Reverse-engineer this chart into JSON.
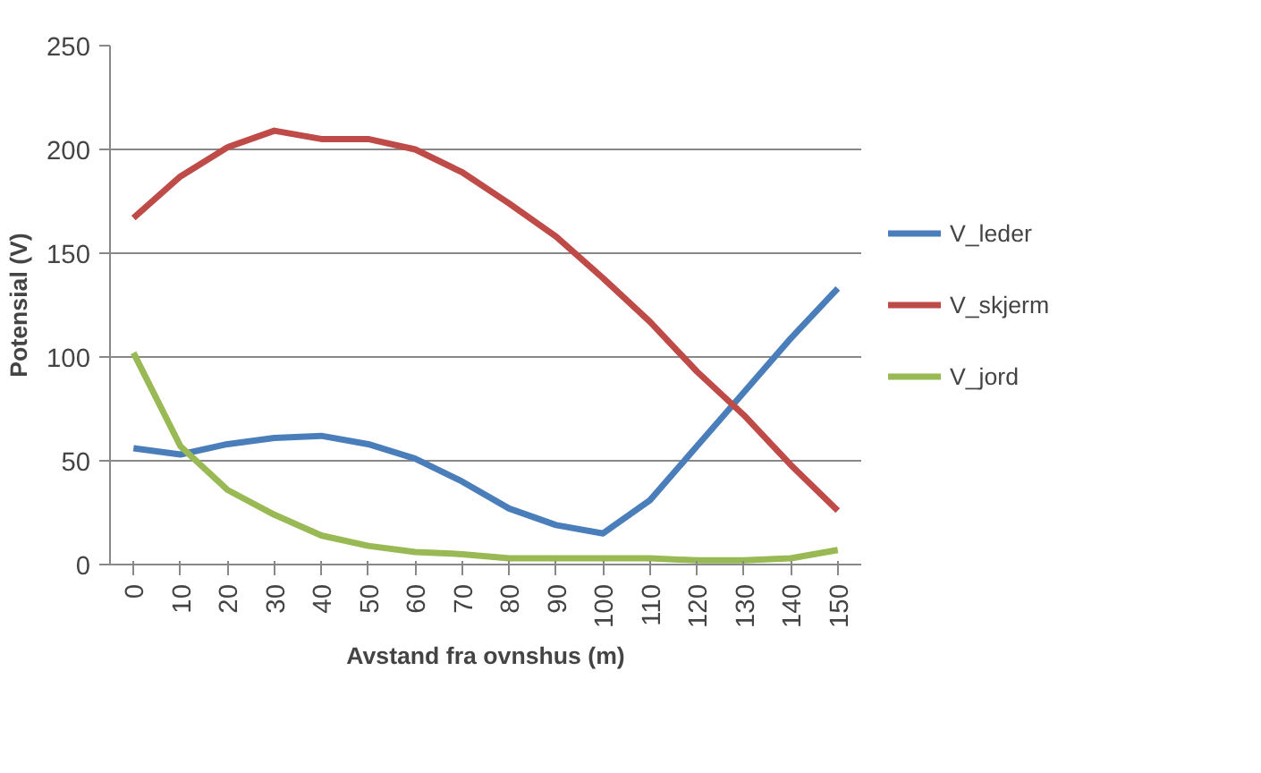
{
  "chart_data": {
    "type": "line",
    "xlabel": "Avstand fra ovnshus (m)",
    "ylabel": "Potensial (V)",
    "categories": [
      "0",
      "10",
      "20",
      "30",
      "40",
      "50",
      "60",
      "70",
      "80",
      "90",
      "100",
      "110",
      "120",
      "130",
      "140",
      "150"
    ],
    "ylim": [
      0,
      250
    ],
    "yticks": [
      0,
      50,
      100,
      150,
      200,
      250
    ],
    "grid": "y",
    "legend": "right",
    "marker": "none",
    "line_style": "solid",
    "series": [
      {
        "name": "V_leder",
        "color": "#4a7ebb",
        "values": [
          56,
          53,
          58,
          61,
          62,
          58,
          51,
          40,
          27,
          19,
          15,
          31,
          57,
          83,
          109,
          133
        ]
      },
      {
        "name": "V_skjerm",
        "color": "#be4b48",
        "values": [
          167,
          187,
          201,
          209,
          205,
          205,
          200,
          189,
          174,
          158,
          138,
          117,
          93,
          72,
          48,
          26
        ]
      },
      {
        "name": "V_jord",
        "color": "#98b954",
        "values": [
          102,
          57,
          36,
          24,
          14,
          9,
          6,
          5,
          3,
          3,
          3,
          3,
          2,
          2,
          3,
          7
        ]
      }
    ]
  }
}
